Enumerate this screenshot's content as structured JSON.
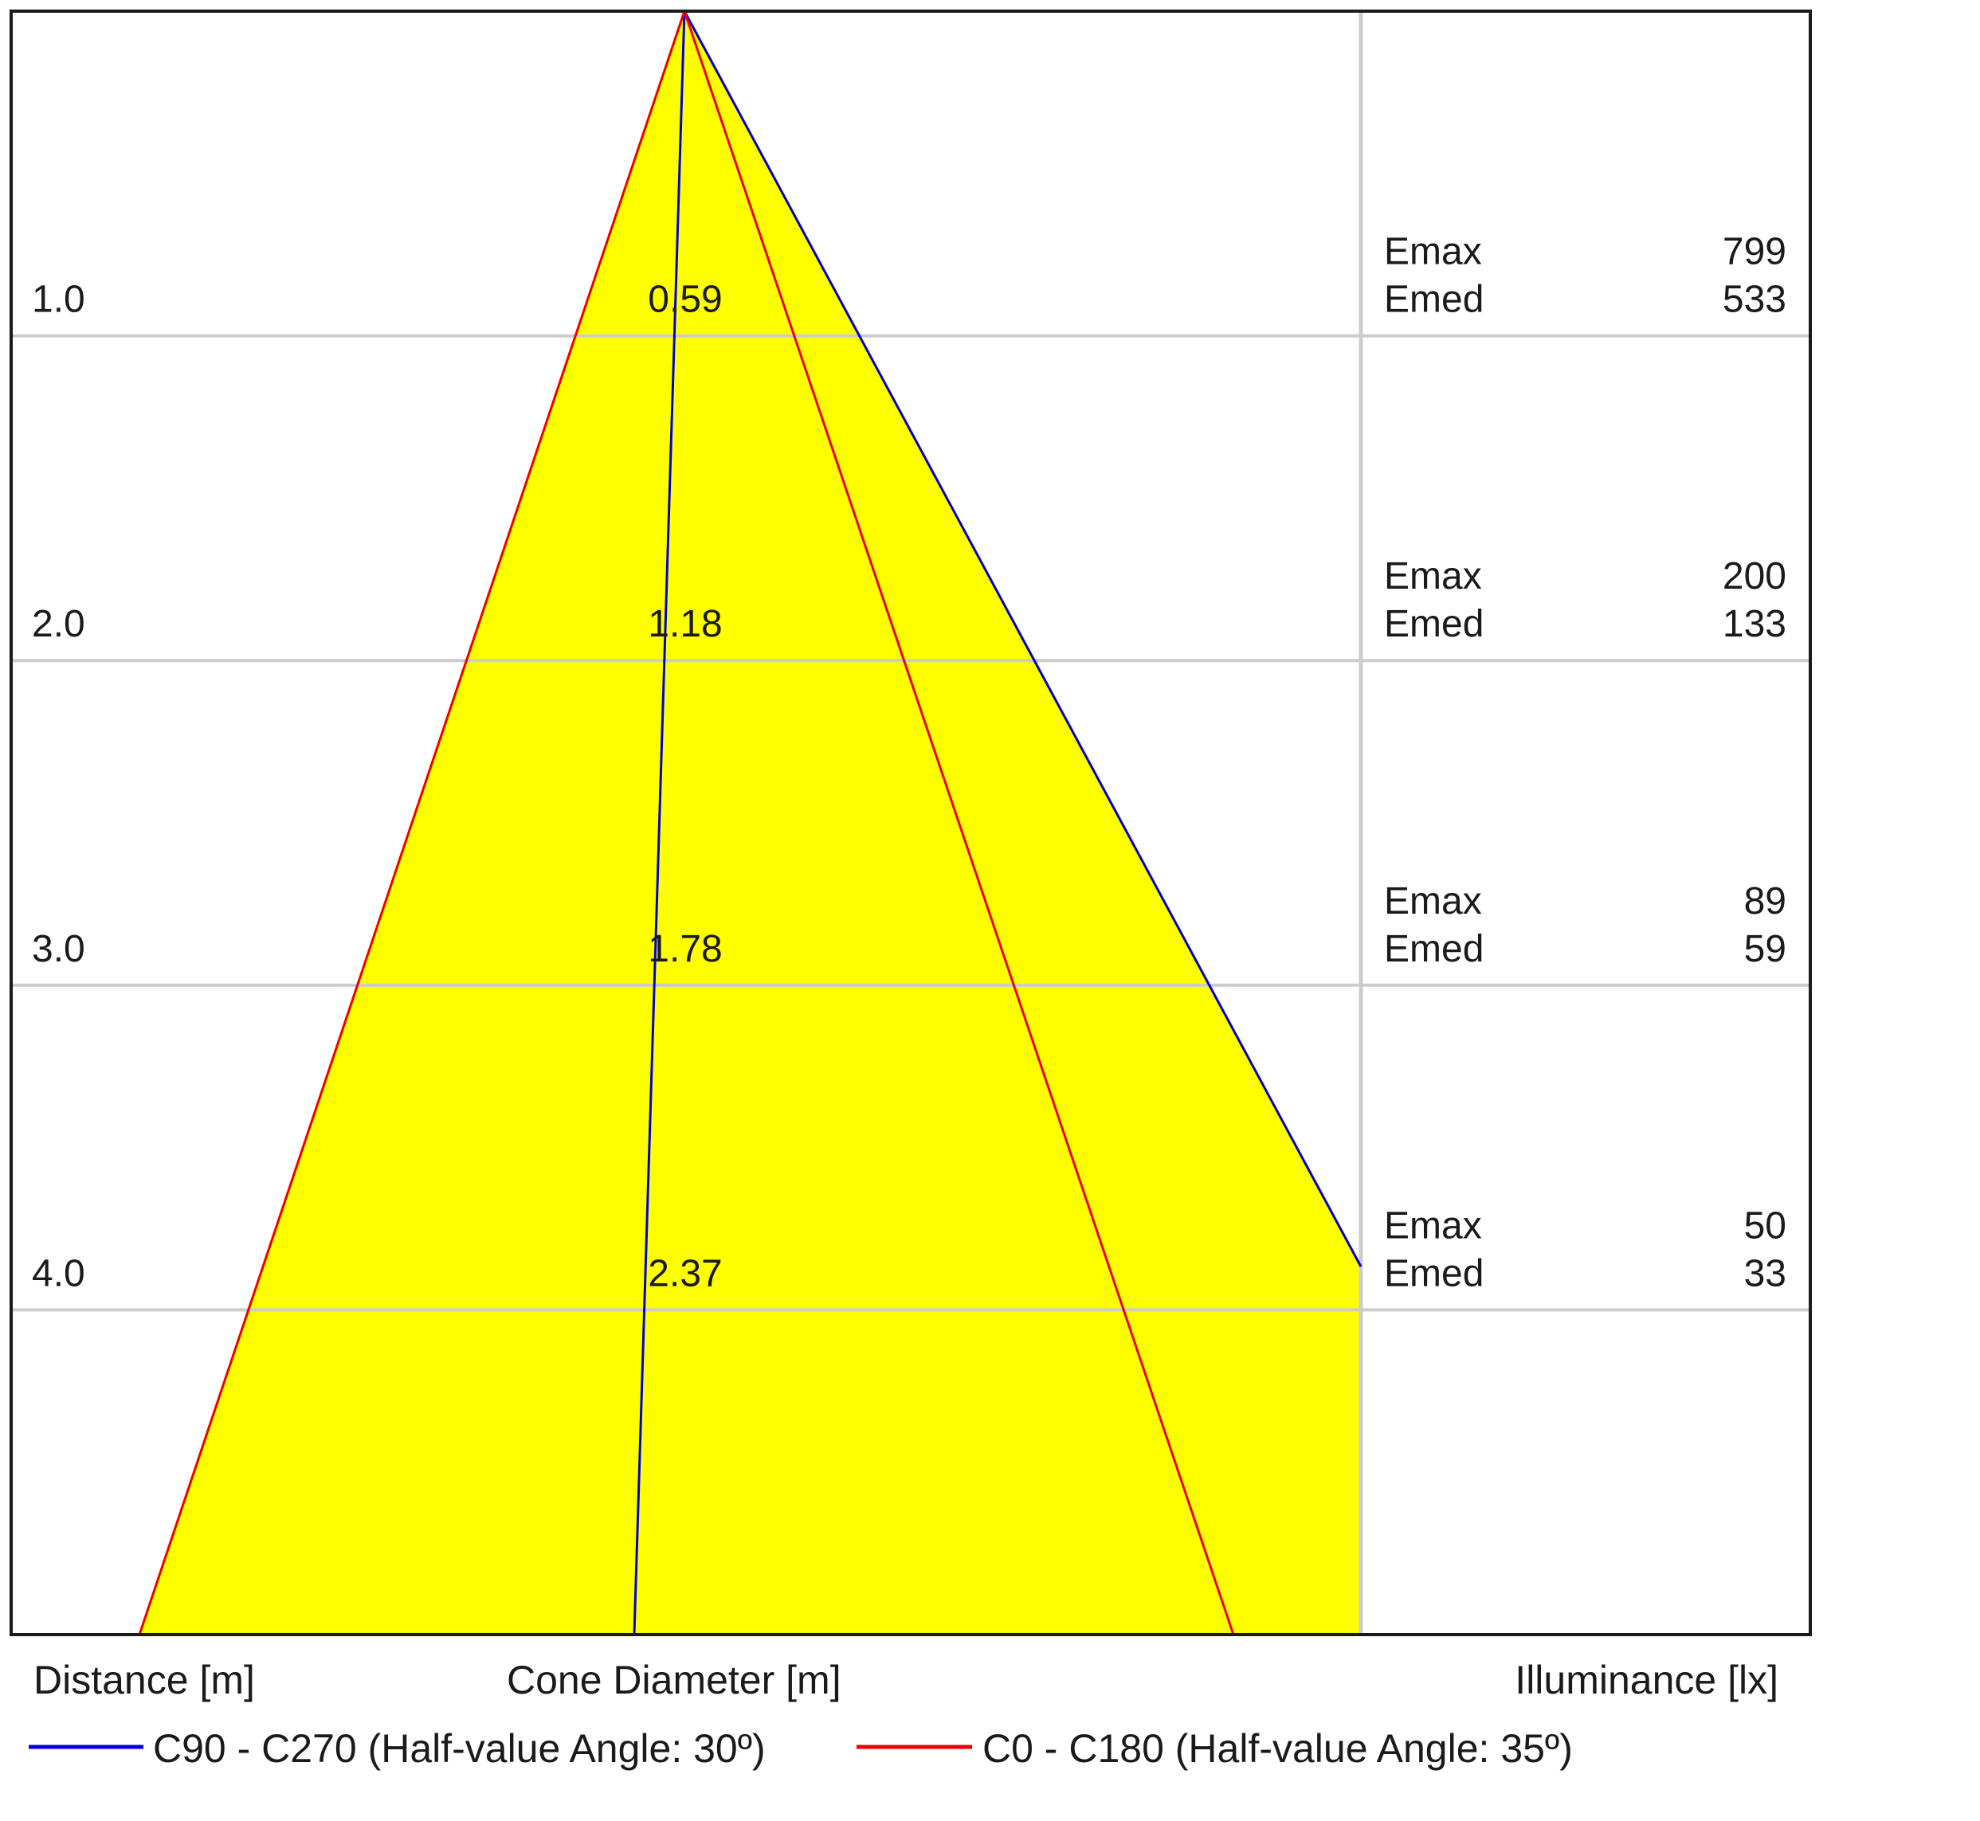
{
  "chart_data": {
    "type": "area",
    "title": "",
    "colors": {
      "cone_fill": "#ffff00",
      "c90_line": "#0000dd",
      "c0_line": "#ee0000",
      "grid": "#cccccc",
      "frame": "#1a1a1a"
    },
    "axis_labels": {
      "distance": "Distance [m]",
      "cone_diameter": "Cone Diameter [m]",
      "illuminance": "Illuminance [lx]"
    },
    "distance_range_m": [
      0,
      5
    ],
    "rows": [
      {
        "distance": "1.0",
        "diameter": "0.59",
        "emax_label": "Emax",
        "emax": "799",
        "emed_label": "Emed",
        "emed": "533"
      },
      {
        "distance": "2.0",
        "diameter": "1.18",
        "emax_label": "Emax",
        "emax": "200",
        "emed_label": "Emed",
        "emed": "133"
      },
      {
        "distance": "3.0",
        "diameter": "1.78",
        "emax_label": "Emax",
        "emax": "89",
        "emed_label": "Emed",
        "emed": "59"
      },
      {
        "distance": "4.0",
        "diameter": "2.37",
        "emax_label": "Emax",
        "emax": "50",
        "emed_label": "Emed",
        "emed": "33"
      }
    ],
    "series": [
      {
        "name": "C90 - C270 (Half-value Angle: 30º)",
        "half_value_angle_deg": 30,
        "color": "#0000dd"
      },
      {
        "name": "C0 - C180 (Half-value Angle: 35º)",
        "half_value_angle_deg": 35,
        "color": "#ee0000"
      }
    ]
  }
}
